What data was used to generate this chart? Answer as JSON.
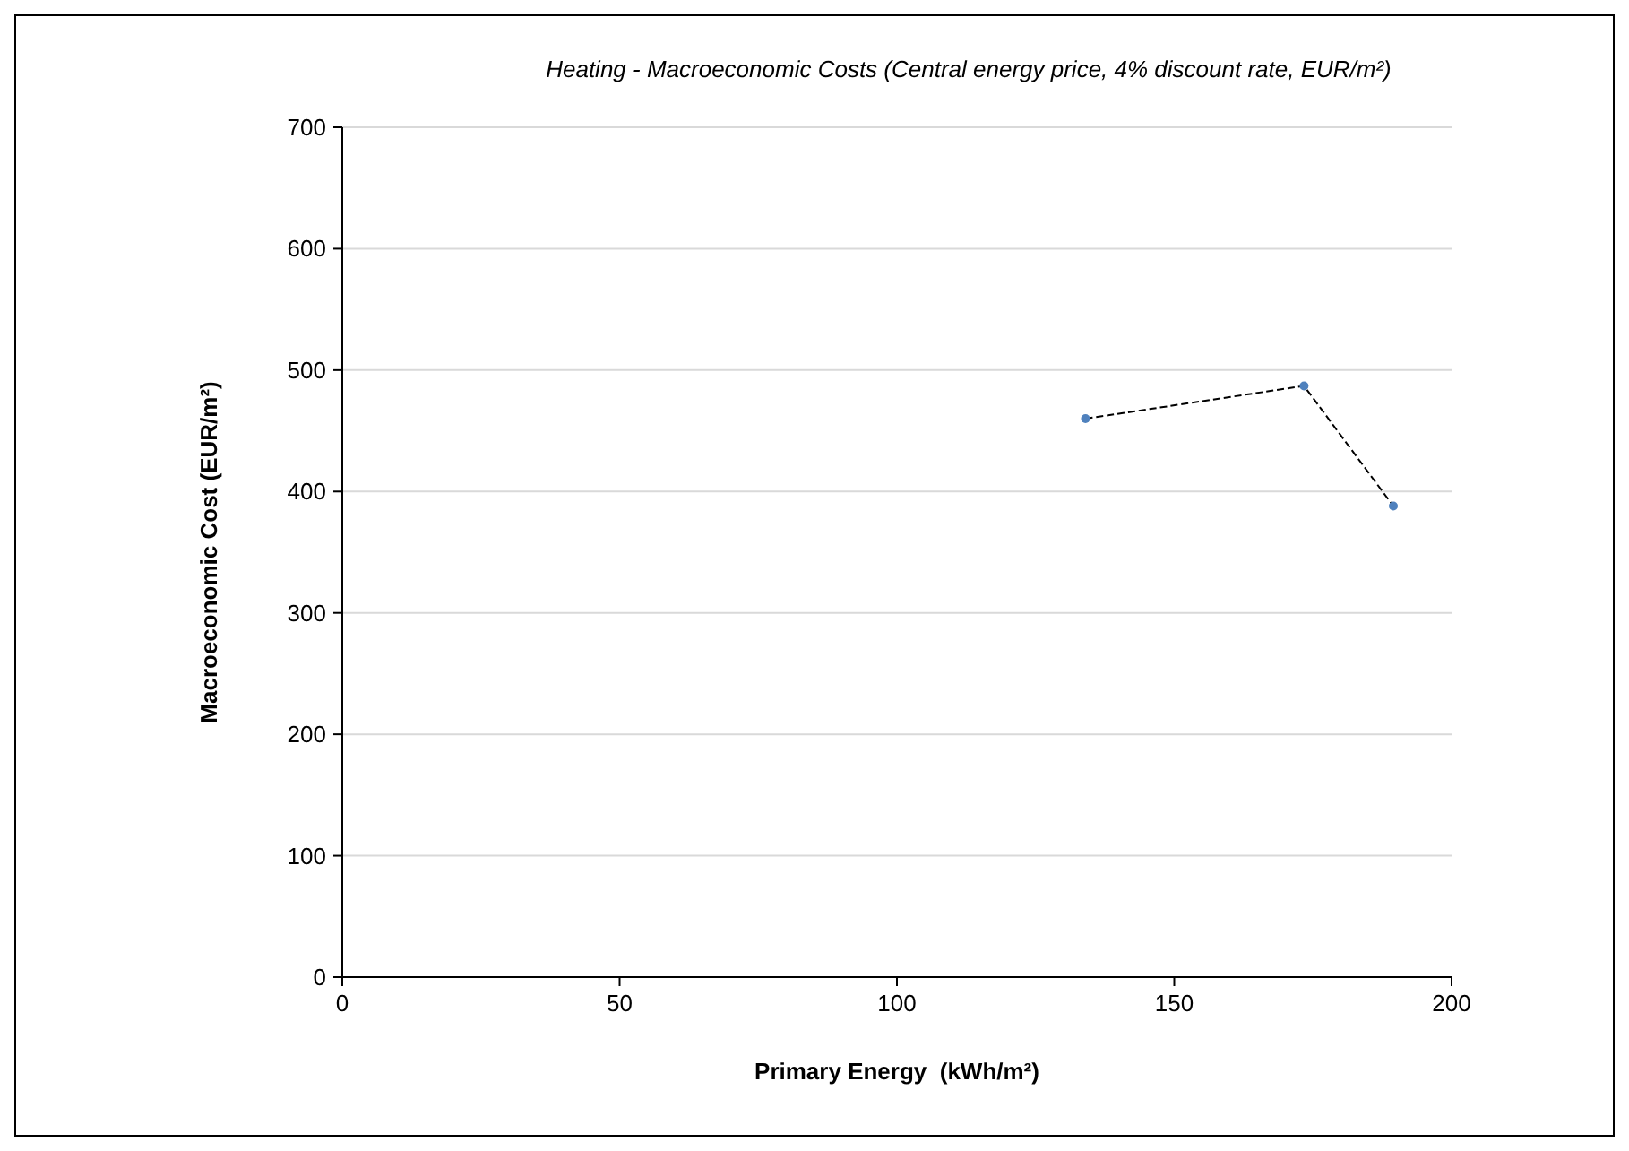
{
  "chart_data": {
    "type": "line",
    "title": "Heating - Macroeconomic Costs (Central energy price, 4% discount rate, EUR/m²)",
    "xlabel": "Primary Energy  (kWh/m²)",
    "ylabel": "Macroeconomic Cost (EUR/m²)",
    "series": [
      {
        "color": "#4f81bd",
        "x": [
          134,
          173.4,
          189.5
        ],
        "values": [
          460,
          487,
          388
        ]
      }
    ],
    "xlim": [
      0,
      200
    ],
    "xticks": [
      0,
      50,
      100,
      150,
      200
    ],
    "ylim": [
      0,
      700
    ],
    "yticks": [
      0,
      100,
      200,
      300,
      400,
      500,
      600,
      700
    ],
    "grid": "y",
    "marker": "circle",
    "line_style": "dashed"
  }
}
